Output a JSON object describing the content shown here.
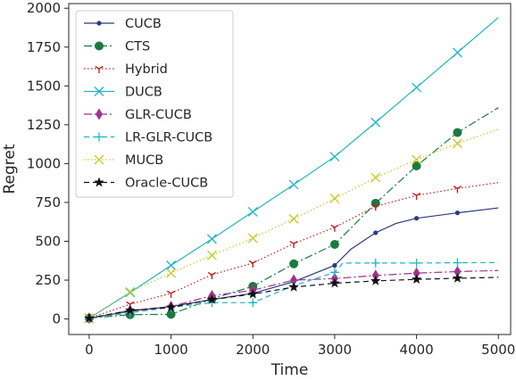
{
  "chart_data": {
    "type": "line",
    "xlabel": "Time",
    "ylabel": "Regret",
    "xlim": [
      -250,
      5150
    ],
    "ylim": [
      -100,
      2030
    ],
    "xticks": [
      0,
      1000,
      2000,
      3000,
      4000,
      5000
    ],
    "yticks": [
      0,
      250,
      500,
      750,
      1000,
      1250,
      1500,
      1750,
      2000
    ],
    "grid": false,
    "legend_position": "top-left",
    "marker_x": [
      0,
      500,
      1000,
      1500,
      2000,
      2500,
      3000,
      3500,
      4000,
      4500
    ],
    "series": [
      {
        "name": "CUCB",
        "color": "#2e3a7a",
        "dash": "",
        "marker": "dot",
        "x": [
          0,
          500,
          1000,
          1500,
          2000,
          2500,
          3000,
          3200,
          3500,
          3750,
          4000,
          4500,
          5000
        ],
        "y": [
          5,
          50,
          80,
          125,
          165,
          240,
          345,
          450,
          555,
          615,
          648,
          683,
          715
        ]
      },
      {
        "name": "CTS",
        "color": "#1a7a40",
        "dash": "9 3 2 3",
        "marker": "circle",
        "x": [
          0,
          500,
          1000,
          1500,
          2000,
          2500,
          3000,
          3500,
          4000,
          4500,
          5000
        ],
        "y": [
          5,
          28,
          30,
          130,
          210,
          355,
          480,
          745,
          985,
          1200,
          1360
        ]
      },
      {
        "name": "Hybrid",
        "color": "#c41e1e",
        "dash": "1.5 2.5",
        "marker": "tri",
        "x": [
          0,
          500,
          1000,
          1500,
          2000,
          2500,
          3000,
          3500,
          4000,
          4500,
          5000
        ],
        "y": [
          5,
          95,
          165,
          285,
          360,
          485,
          590,
          725,
          795,
          840,
          878
        ]
      },
      {
        "name": "DUCB",
        "color": "#1fb5c6",
        "dash": "",
        "marker": "x",
        "x": [
          0,
          500,
          1000,
          1500,
          2000,
          2500,
          3000,
          3500,
          4000,
          4500,
          5000
        ],
        "y": [
          5,
          170,
          345,
          515,
          690,
          865,
          1045,
          1265,
          1490,
          1715,
          1940
        ]
      },
      {
        "name": "GLR-CUCB",
        "color": "#a0328c",
        "dash": "9 3 2 3",
        "marker": "diamond",
        "x": [
          0,
          500,
          1000,
          1500,
          2000,
          2500,
          3000,
          3500,
          4000,
          4500,
          5000
        ],
        "y": [
          5,
          55,
          80,
          150,
          185,
          250,
          260,
          280,
          295,
          305,
          312
        ]
      },
      {
        "name": "LR-GLR-CUCB",
        "color": "#1fb5c6",
        "dash": "6 4",
        "marker": "plus",
        "x": [
          0,
          500,
          1000,
          1500,
          2000,
          2500,
          3000,
          3100,
          3500,
          4000,
          4500,
          5000
        ],
        "y": [
          5,
          40,
          75,
          105,
          105,
          215,
          300,
          360,
          360,
          360,
          362,
          363
        ]
      },
      {
        "name": "MUCB",
        "color": "#c8c828",
        "dash": "1.5 2.5",
        "marker": "x",
        "x": [
          0,
          500,
          1000,
          1500,
          2000,
          2500,
          3000,
          3500,
          4000,
          4500,
          5000
        ],
        "y": [
          5,
          175,
          295,
          410,
          520,
          645,
          775,
          910,
          1025,
          1130,
          1220
        ]
      },
      {
        "name": "Oracle-CUCB",
        "color": "#111111",
        "dash": "6 4",
        "marker": "star",
        "x": [
          0,
          500,
          1000,
          1500,
          2000,
          2500,
          3000,
          3500,
          4000,
          4500,
          5000
        ],
        "y": [
          5,
          55,
          75,
          125,
          160,
          205,
          230,
          245,
          255,
          262,
          268
        ]
      }
    ]
  }
}
